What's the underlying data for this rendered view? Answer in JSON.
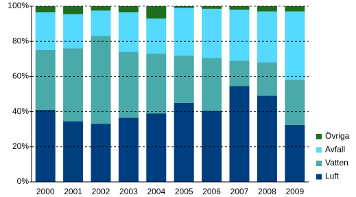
{
  "chart_data": {
    "type": "stacked_bar",
    "categories": [
      "2000",
      "2001",
      "2002",
      "2003",
      "2004",
      "2005",
      "2006",
      "2007",
      "2008",
      "2009"
    ],
    "series": [
      {
        "name": "Luft",
        "color": "#003f7f",
        "values": [
          41,
          34.5,
          33,
          36.5,
          39,
          45,
          40.5,
          54.5,
          49,
          32.5
        ]
      },
      {
        "name": "Vatten",
        "color": "#4aa9a9",
        "values": [
          34,
          41.5,
          50,
          37.5,
          34,
          27,
          30,
          14.5,
          19,
          25.5
        ]
      },
      {
        "name": "Avfall",
        "color": "#55d9ff",
        "values": [
          21.5,
          19.5,
          14.5,
          22.5,
          20,
          27,
          28,
          29,
          29,
          39
        ]
      },
      {
        "name": "Övriga",
        "color": "#1f6e1f",
        "values": [
          3.5,
          4.5,
          2.5,
          3.5,
          7,
          1,
          1.5,
          2,
          3,
          3
        ]
      }
    ],
    "ylim": [
      0,
      100
    ],
    "yticks": [
      {
        "value": 0,
        "label": "0%"
      },
      {
        "value": 20,
        "label": "20%"
      },
      {
        "value": 40,
        "label": "40%"
      },
      {
        "value": 60,
        "label": "60%"
      },
      {
        "value": 80,
        "label": "80%"
      },
      {
        "value": 100,
        "label": "100%"
      }
    ],
    "grid": true,
    "legend": "right"
  }
}
